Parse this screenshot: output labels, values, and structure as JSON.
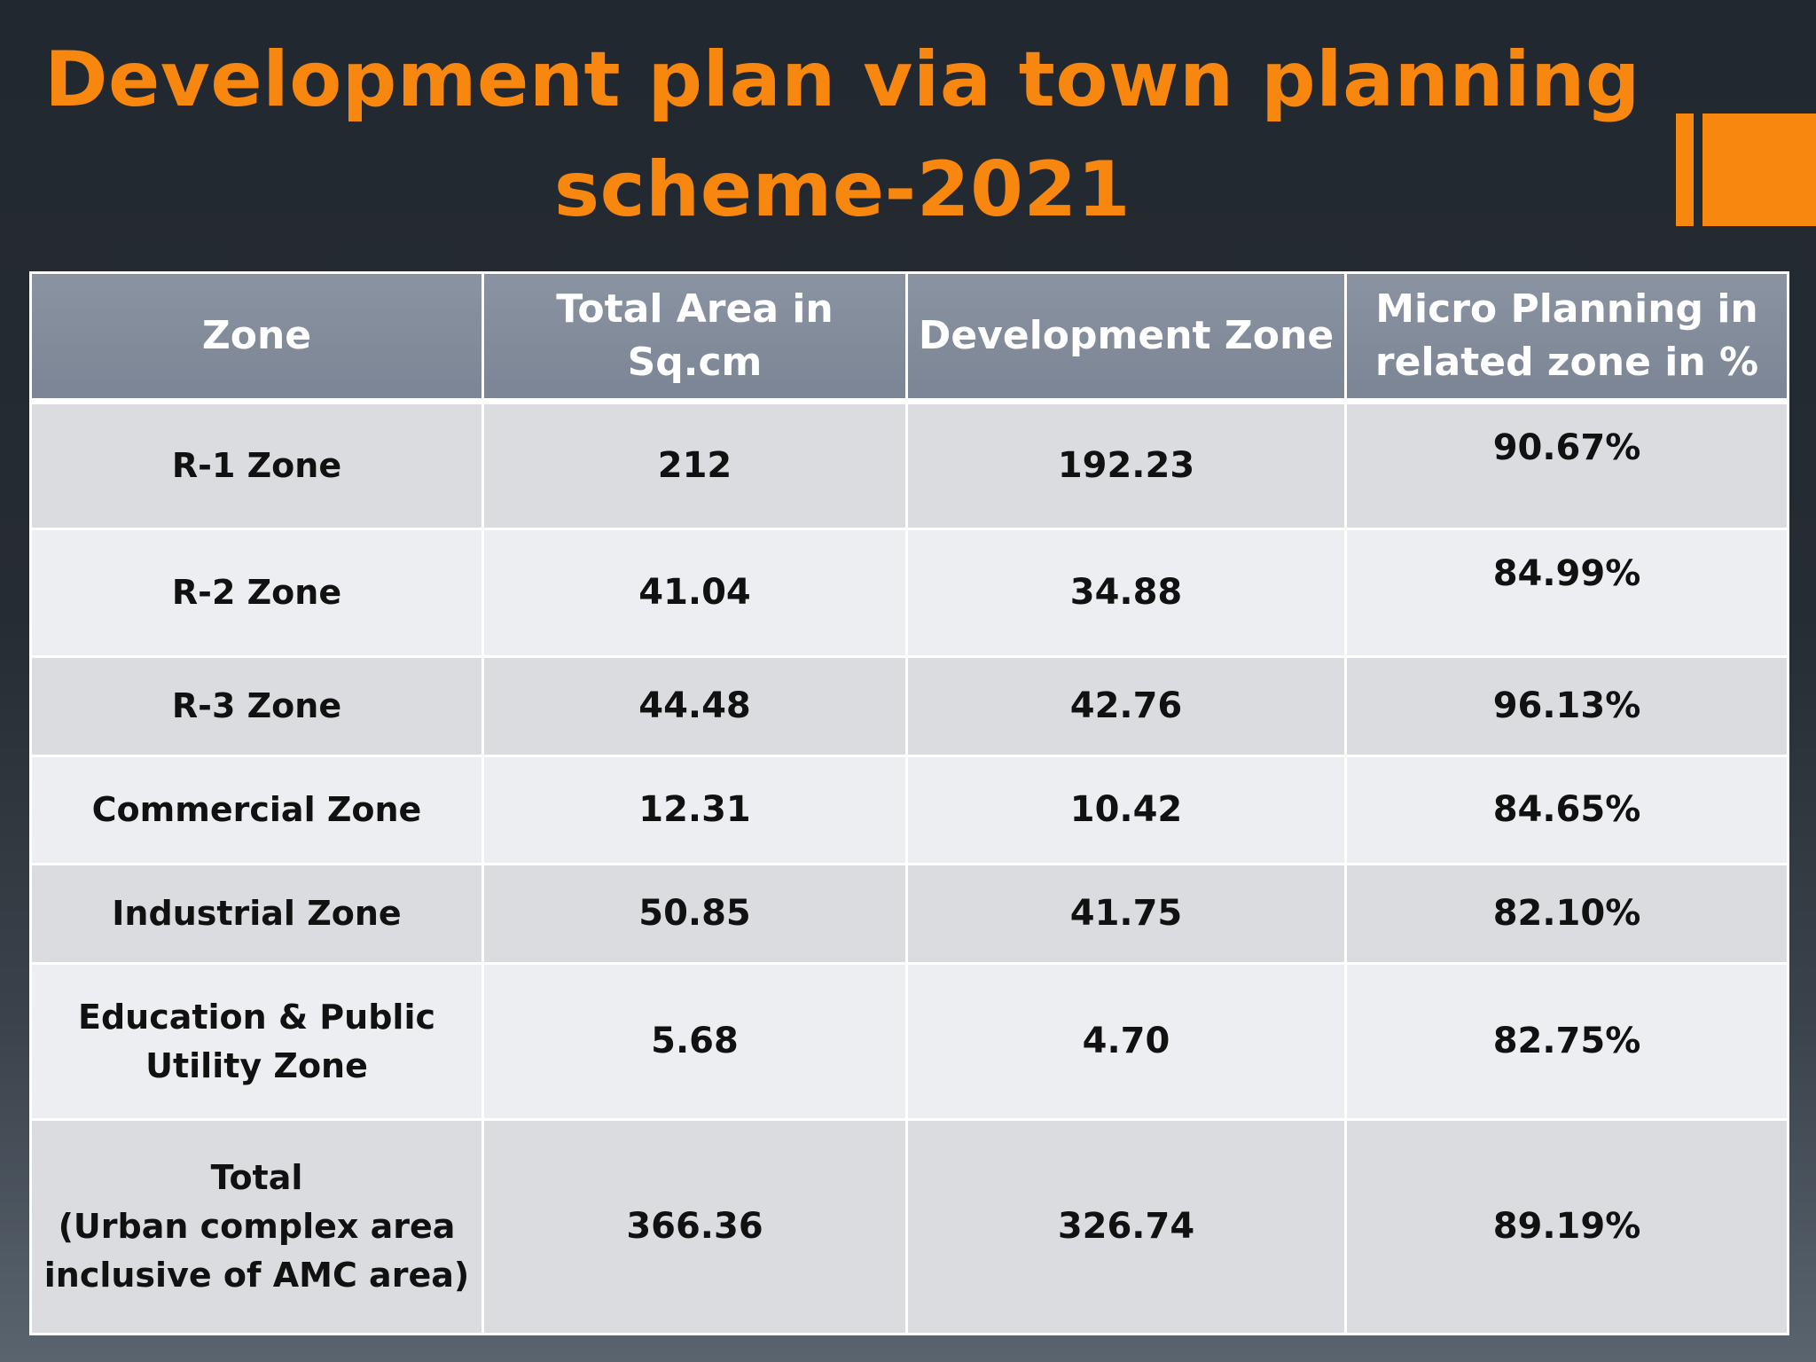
{
  "title": {
    "line1": "Development plan via town planning",
    "line2": "scheme-2021"
  },
  "colors": {
    "title": "#f7870f",
    "accent": "#f7870f",
    "header_bg": "#848d9b",
    "row_odd": "#dadce0",
    "row_even": "#eceef1"
  },
  "table": {
    "headers": [
      "Zone",
      "Total Area in Sq.cm",
      "Development Zone",
      "Micro Planning in related zone in %"
    ],
    "rows": [
      {
        "zone": "R-1 Zone",
        "total_area": "212",
        "development_zone": "192.23",
        "micro_planning": "90.67%"
      },
      {
        "zone": "R-2 Zone",
        "total_area": "41.04",
        "development_zone": "34.88",
        "micro_planning": "84.99%"
      },
      {
        "zone": "R-3 Zone",
        "total_area": "44.48",
        "development_zone": "42.76",
        "micro_planning": "96.13%"
      },
      {
        "zone": "Commercial Zone",
        "total_area": "12.31",
        "development_zone": "10.42",
        "micro_planning": "84.65%"
      },
      {
        "zone": "Industrial Zone",
        "total_area": "50.85",
        "development_zone": "41.75",
        "micro_planning": "82.10%"
      },
      {
        "zone": "Education & Public Utility Zone",
        "total_area": "5.68",
        "development_zone": "4.70",
        "micro_planning": "82.75%"
      },
      {
        "zone_line1": "Total",
        "zone_line2": "(Urban complex area inclusive of AMC area)",
        "total_area": "366.36",
        "development_zone": "326.74",
        "micro_planning": "89.19%"
      }
    ]
  }
}
